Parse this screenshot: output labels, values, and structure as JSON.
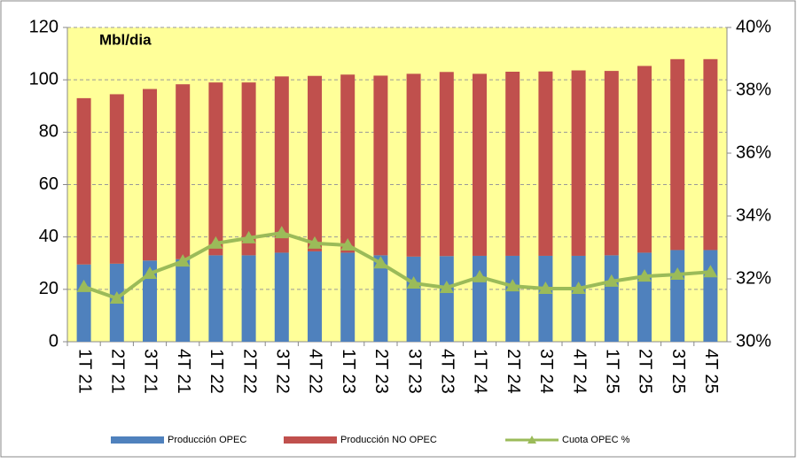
{
  "chart_data": {
    "type": "bar-line",
    "title": "Mbl/dia",
    "categories": [
      "1T 21",
      "2T 21",
      "3T 21",
      "4T 21",
      "1T 22",
      "2T 22",
      "3T 22",
      "4T 22",
      "1T 23",
      "2T 23",
      "3T 23",
      "4T 23",
      "1T 24",
      "2T 24",
      "3T 24",
      "4T 24",
      "1T 25",
      "2T 25",
      "3T 25",
      "4T 25"
    ],
    "series": [
      {
        "name": "Producción OPEC",
        "type": "bar",
        "color": "#4f81bd",
        "values": [
          29.5,
          29.8,
          31,
          31.5,
          33,
          33,
          34,
          34.5,
          34,
          33,
          32.5,
          32.7,
          32.8,
          32.8,
          32.8,
          32.8,
          33,
          34,
          35,
          35
        ]
      },
      {
        "name": "Producción NO OPEC",
        "type": "bar",
        "color": "#c0504d",
        "values": [
          63.5,
          64.7,
          65.5,
          66.8,
          66,
          66,
          67.3,
          67,
          68,
          68.6,
          69.8,
          70.3,
          69.5,
          70.3,
          70.4,
          70.8,
          70.4,
          71.3,
          72.9,
          72.9
        ]
      },
      {
        "name": "Cuota OPEC %",
        "type": "line",
        "axis": "y2",
        "color": "#9bbb59",
        "values": [
          31.75,
          31.38,
          32.17,
          32.56,
          33.13,
          33.3,
          33.46,
          33.13,
          33.07,
          32.5,
          31.86,
          31.72,
          32.06,
          31.77,
          31.69,
          31.69,
          31.92,
          32.08,
          32.14,
          32.22
        ]
      }
    ],
    "ylim": [
      0,
      120
    ],
    "yticks": [
      0,
      20,
      40,
      60,
      80,
      100,
      120
    ],
    "y2lim": [
      30,
      40
    ],
    "y2ticks": [
      {
        "value": 30,
        "label": "30%"
      },
      {
        "value": 32,
        "label": "32%"
      },
      {
        "value": 34,
        "label": "34%"
      },
      {
        "value": 36,
        "label": "36%"
      },
      {
        "value": 38,
        "label": "38%"
      },
      {
        "value": 40,
        "label": "40%"
      }
    ],
    "grid": true,
    "stacked": true,
    "legend": "bottom"
  }
}
